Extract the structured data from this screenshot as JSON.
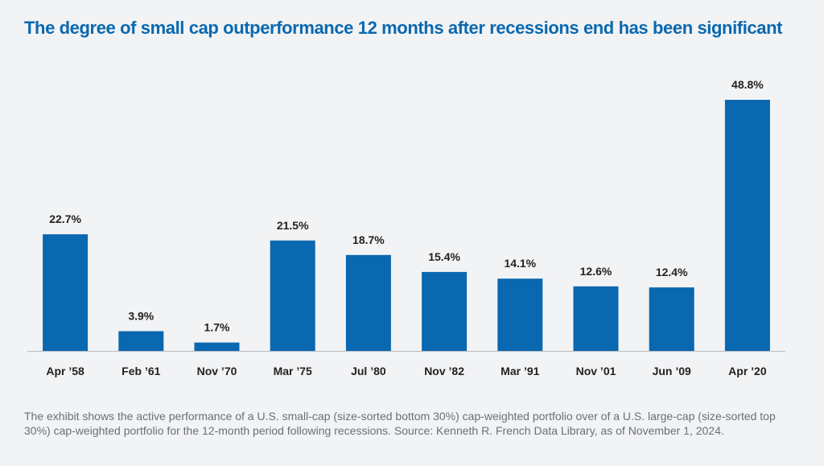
{
  "title": "The degree of small cap outperformance 12 months after recessions end has been significant",
  "footnote": "The exhibit shows the active performance of a U.S. small-cap (size-sorted bottom 30%) cap-weighted portfolio over of a U.S. large-cap (size-sorted top 30%) cap-weighted portfolio for the 12-month period following recessions. Source: Kenneth R. French Data Library, as of November 1, 2024.",
  "colors": {
    "bar": "#0a68b0",
    "title": "#0a68b0",
    "axis": "#b9bcc0",
    "background": "#f2f3f5"
  },
  "chart_data": {
    "type": "bar",
    "title": "The degree of small cap outperformance 12 months after recessions end has been significant",
    "categories": [
      "Apr ’58",
      "Feb ’61",
      "Nov ’70",
      "Mar ’75",
      "Jul ’80",
      "Nov ’82",
      "Mar ’91",
      "Nov ’01",
      "Jun ’09",
      "Apr ’20"
    ],
    "values": [
      22.7,
      3.9,
      1.7,
      21.5,
      18.7,
      15.4,
      14.1,
      12.6,
      12.4,
      48.8
    ],
    "value_labels": [
      "22.7%",
      "3.9%",
      "1.7%",
      "21.5%",
      "18.7%",
      "15.4%",
      "14.1%",
      "12.6%",
      "12.4%",
      "48.8%"
    ],
    "xlabel": "",
    "ylabel": "",
    "ylim": [
      0,
      48.8
    ],
    "grid": false,
    "legend": "none"
  }
}
